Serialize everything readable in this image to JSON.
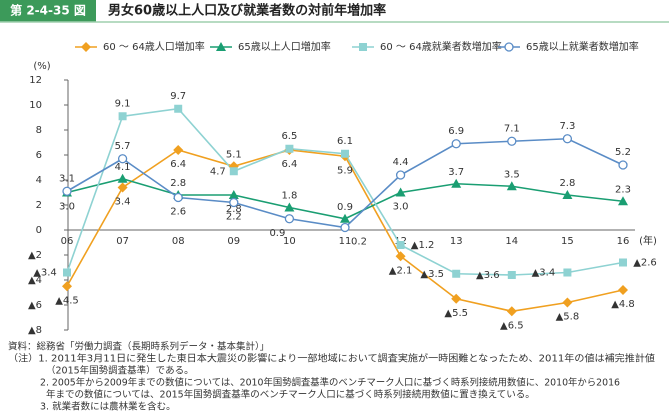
{
  "header": {
    "figure_no": "第 2-4-35 図",
    "title": "男女60歳以上人口及び就業者数の対前年増加率"
  },
  "chart_data": {
    "type": "line",
    "y_unit": "(%)",
    "x_unit": "(年)",
    "categories": [
      "06",
      "07",
      "08",
      "09",
      "10",
      "11",
      "12",
      "13",
      "14",
      "15",
      "16"
    ],
    "ylim": [
      -8,
      12
    ],
    "yticks": [
      {
        "value": -8,
        "label": "▲8"
      },
      {
        "value": -6,
        "label": "▲6"
      },
      {
        "value": -4,
        "label": "▲4"
      },
      {
        "value": -2,
        "label": "▲2"
      },
      0,
      2,
      4,
      6,
      8,
      10,
      12
    ],
    "series": [
      {
        "name": "60 ～ 64歳人口増加率",
        "color": "#f0a020",
        "marker": "diamond",
        "values": [
          -4.5,
          3.4,
          6.4,
          5.1,
          6.4,
          5.9,
          -2.1,
          -5.5,
          -6.5,
          -5.8,
          -4.8
        ],
        "value_labels": [
          "▲4.5",
          "3.4",
          "6.4",
          "5.1",
          "6.4",
          "5.9",
          "▲2.1",
          "▲5.5",
          "▲6.5",
          "▲5.8",
          "▲4.8"
        ]
      },
      {
        "name": "65歳以上人口増加率",
        "color": "#1a9e72",
        "marker": "triangle",
        "values": [
          3.0,
          4.1,
          2.8,
          2.8,
          1.8,
          0.9,
          3.0,
          3.7,
          3.5,
          2.8,
          2.3
        ],
        "value_labels": [
          "3.0",
          "4.1",
          "2.8",
          "2.8",
          "1.8",
          "0.9",
          "3.0",
          "3.7",
          "3.5",
          "2.8",
          "2.3"
        ]
      },
      {
        "name": "60 ～ 64歳就業者数増加率",
        "color": "#8ed2d2",
        "marker": "square",
        "values": [
          -3.4,
          9.1,
          9.7,
          4.7,
          6.5,
          6.1,
          -1.2,
          -3.5,
          -3.6,
          -3.4,
          -2.6
        ],
        "value_labels": [
          "▲3.4",
          "9.1",
          "9.7",
          "4.7",
          "6.5",
          "6.1",
          "▲1.2",
          "▲3.5",
          "▲3.6",
          "▲3.4",
          "▲2.6"
        ]
      },
      {
        "name": "65歳以上就業者数増加率",
        "color": "#5a8cc6",
        "marker": "circle",
        "values": [
          3.1,
          5.7,
          2.6,
          2.2,
          0.9,
          0.2,
          4.4,
          6.9,
          7.1,
          7.3,
          5.2
        ],
        "value_labels": [
          "3.1",
          "5.7",
          "2.6",
          "2.2",
          "0.9",
          "0.2",
          "4.4",
          "6.9",
          "7.1",
          "7.3",
          "5.2"
        ]
      }
    ]
  },
  "notes": [
    "資料：総務省「労働力調査（長期時系列データ・基本集計）」",
    "（注）1. 2011年3月11日に発生した東日本大震災の影響により一部地域において調査実施が一時困難となったため、2011年の値は補完推計値",
    "（2015年国勢調査基準）である。",
    "2. 2005年から2009年までの数値については、2010年国勢調査基準のベンチマーク人口に基づく時系列接続用数値に、2010年から2016",
    "年までの数値については、2015年国勢調査基準のベンチマーク人口に基づく時系列接続用数値に置き換えている。",
    "3. 就業者数には農林業を含む。"
  ]
}
